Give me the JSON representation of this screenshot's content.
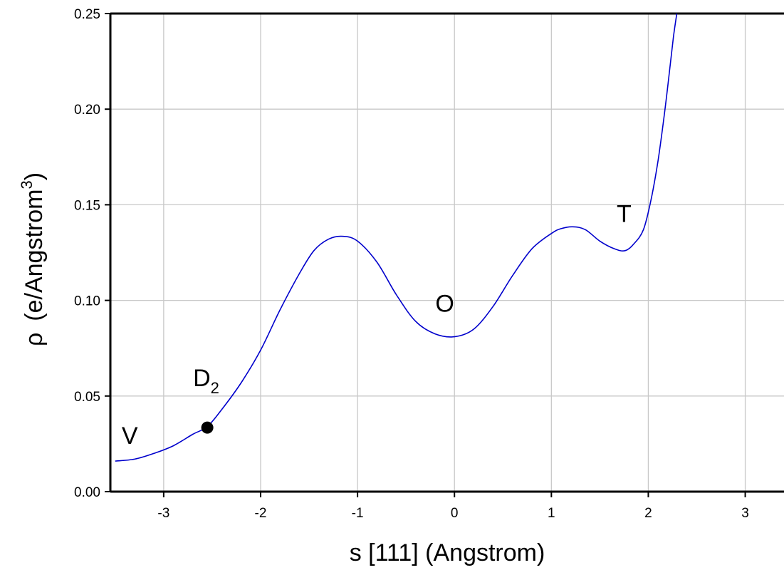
{
  "chart_data": {
    "type": "line",
    "title": "",
    "xlabel": "s [111] (Angstrom)",
    "ylabel_symbol": "ρ",
    "ylabel_text": "(e/Angstrom",
    "ylabel_sup": "3",
    "ylabel_close": ")",
    "xlim": [
      -3.55,
      3.4
    ],
    "ylim": [
      0.0,
      0.25
    ],
    "x_ticks": [
      -3,
      -2,
      -1,
      0,
      1,
      2,
      3
    ],
    "x_tick_labels": [
      "-3",
      "-2",
      "-1",
      "0",
      "1",
      "2",
      "3"
    ],
    "y_ticks": [
      0.0,
      0.05,
      0.1,
      0.15,
      0.2,
      0.25
    ],
    "y_tick_labels": [
      "0.00",
      "0.05",
      "0.10",
      "0.15",
      "0.20",
      "0.25"
    ],
    "grid": true,
    "series": [
      {
        "color": "#0000cc",
        "x": [
          -3.5,
          -3.3,
          -3.1,
          -2.9,
          -2.7,
          -2.55,
          -2.4,
          -2.2,
          -2.0,
          -1.8,
          -1.6,
          -1.45,
          -1.3,
          -1.15,
          -1.0,
          -0.8,
          -0.6,
          -0.4,
          -0.2,
          0.0,
          0.2,
          0.4,
          0.6,
          0.8,
          1.0,
          1.1,
          1.22,
          1.35,
          1.5,
          1.65,
          1.76,
          1.85,
          1.95,
          2.03,
          2.1,
          2.16,
          2.21,
          2.26,
          2.3
        ],
        "y": [
          0.016,
          0.017,
          0.02,
          0.024,
          0.03,
          0.034,
          0.043,
          0.057,
          0.074,
          0.095,
          0.114,
          0.126,
          0.132,
          0.1335,
          0.131,
          0.12,
          0.103,
          0.089,
          0.0825,
          0.081,
          0.085,
          0.097,
          0.113,
          0.127,
          0.135,
          0.1375,
          0.1385,
          0.137,
          0.131,
          0.127,
          0.126,
          0.1295,
          0.137,
          0.153,
          0.173,
          0.195,
          0.216,
          0.238,
          0.252
        ]
      }
    ],
    "point": {
      "label": "D",
      "label_sub": "2",
      "x": -2.55,
      "y": 0.0335
    },
    "annotations": [
      {
        "name": "V",
        "text": "V",
        "x": -3.35,
        "y": 0.025
      },
      {
        "name": "O",
        "text": "O",
        "x": -0.1,
        "y": 0.094
      },
      {
        "name": "T",
        "text": "T",
        "x": 1.75,
        "y": 0.141
      }
    ]
  }
}
